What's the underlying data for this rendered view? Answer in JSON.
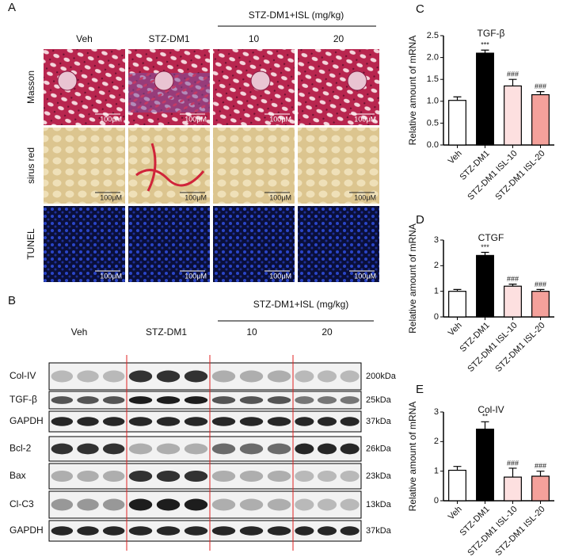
{
  "panel_labels": [
    "A",
    "B",
    "C",
    "D",
    "E"
  ],
  "histology": {
    "group_header": "STZ-DM1+ISL (mg/kg)",
    "columns": [
      "Veh",
      "STZ-DM1",
      "10",
      "20"
    ],
    "rows": [
      "Masson",
      "sirus red",
      "TUNEL"
    ],
    "scale_bar": "100μM"
  },
  "western_blot": {
    "group_header": "STZ-DM1+ISL (mg/kg)",
    "columns": [
      "Veh",
      "STZ-DM1",
      "10",
      "20"
    ],
    "rows": [
      {
        "protein": "Col-IV",
        "size": "200kDa"
      },
      {
        "protein": "TGF-β",
        "size": "25kDa"
      },
      {
        "protein": "GAPDH",
        "size": "37kDa"
      },
      {
        "protein": "Bcl-2",
        "size": "26kDa"
      },
      {
        "protein": "Bax",
        "size": "23kDa"
      },
      {
        "protein": "Cl-C3",
        "size": "13kDa"
      },
      {
        "protein": "GAPDH",
        "size": "37kDa"
      }
    ]
  },
  "chart_data": [
    {
      "type": "bar",
      "title": "TGF-β",
      "y_label": "Relative amount of mRNA",
      "categories": [
        "Veh",
        "STZ-DM1",
        "STZ-DM1 ISL-10",
        "STZ-DM1 ISL-20"
      ],
      "values": [
        1.02,
        2.1,
        1.35,
        1.15
      ],
      "errors": [
        0.08,
        0.07,
        0.15,
        0.07
      ],
      "annotations": [
        null,
        "***",
        "###",
        "###"
      ],
      "colors": [
        "#ffffff",
        "#000000",
        "#fde0e0",
        "#f4a19b"
      ],
      "ylim": [
        0,
        2.5
      ],
      "yticks": [
        {
          "value": 0,
          "label": "0.0"
        },
        0.5,
        {
          "value": 1,
          "label": "1.0"
        },
        1.5,
        {
          "value": 2,
          "label": "2.0"
        },
        2.5
      ]
    },
    {
      "type": "bar",
      "title": "CTGF",
      "y_label": "Relative amount of mRNA",
      "categories": [
        "Veh",
        "STZ-DM1",
        "STZ-DM1 ISL-10",
        "STZ-DM1 ISL-20"
      ],
      "values": [
        1.0,
        2.4,
        1.2,
        1.0
      ],
      "errors": [
        0.07,
        0.12,
        0.08,
        0.07
      ],
      "annotations": [
        null,
        "***",
        "###",
        "###"
      ],
      "colors": [
        "#ffffff",
        "#000000",
        "#fde0e0",
        "#f4a19b"
      ],
      "ylim": [
        0,
        3
      ],
      "yticks": [
        0,
        1,
        2,
        3
      ]
    },
    {
      "type": "bar",
      "title": "Col-IV",
      "y_label": "Relative amount of mRNA",
      "categories": [
        "Veh",
        "STZ-DM1",
        "STZ-DM1 ISL-10",
        "STZ-DM1 ISL-20"
      ],
      "values": [
        1.03,
        2.42,
        0.8,
        0.83
      ],
      "errors": [
        0.13,
        0.25,
        0.3,
        0.17
      ],
      "annotations": [
        null,
        "**",
        "###",
        "###"
      ],
      "colors": [
        "#ffffff",
        "#000000",
        "#fde0e0",
        "#f4a19b"
      ],
      "ylim": [
        0,
        3
      ],
      "yticks": [
        0,
        1,
        2,
        3
      ]
    }
  ]
}
